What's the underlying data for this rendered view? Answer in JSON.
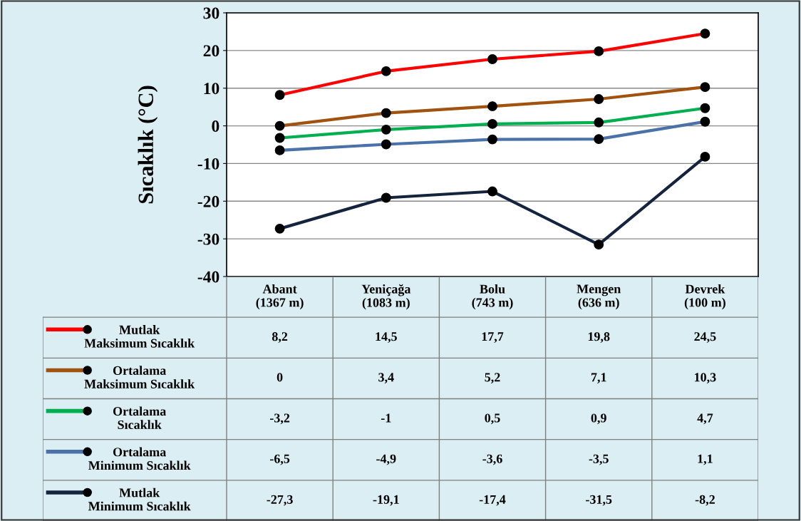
{
  "chart_data": {
    "type": "line",
    "ylabel": "Sıcaklık (°C)",
    "categories": [
      "Abant\n(1367 m)",
      "Yeniçağa\n(1083 m)",
      "Bolu\n(743 m)",
      "Mengen\n(636 m)",
      "Devrek\n(100 m)"
    ],
    "ylim": [
      -40,
      30
    ],
    "yticks": [
      -40,
      -30,
      -20,
      -10,
      0,
      10,
      20,
      30
    ],
    "grid": "y",
    "marker": "circle",
    "line_style": "solid",
    "legend": "left",
    "series": [
      {
        "name": "Mutlak\nMaksimum Sıcaklık",
        "color": "#ff0000",
        "values": [
          8.2,
          14.5,
          17.7,
          19.8,
          24.5
        ],
        "value_labels": [
          "8,2",
          "14,5",
          "17,7",
          "19,8",
          "24,5"
        ]
      },
      {
        "name": "Ortalama\nMaksimum Sıcaklık",
        "color": "#a0520e",
        "values": [
          0,
          3.4,
          5.2,
          7.1,
          10.3
        ],
        "value_labels": [
          "0",
          "3,4",
          "5,2",
          "7,1",
          "10,3"
        ]
      },
      {
        "name": "Ortalama\nSıcaklık",
        "color": "#00b050",
        "values": [
          -3.2,
          -1,
          0.5,
          0.9,
          4.7
        ],
        "value_labels": [
          "-3,2",
          "-1",
          "0,5",
          "0,9",
          "4,7"
        ]
      },
      {
        "name": "Ortalama\nMinimum Sıcaklık",
        "color": "#4a72a8",
        "values": [
          -6.5,
          -4.9,
          -3.6,
          -3.5,
          1.1
        ],
        "value_labels": [
          "-6,5",
          "-4,9",
          "-3,6",
          "-3,5",
          "1,1"
        ]
      },
      {
        "name": "Mutlak\nMinimum Sıcaklık",
        "color": "#14243f",
        "values": [
          -27.3,
          -19.1,
          -17.4,
          -31.5,
          -8.2
        ],
        "value_labels": [
          "-27,3",
          "-19,1",
          "-17,4",
          "-31,5",
          "-8,2"
        ]
      }
    ]
  }
}
